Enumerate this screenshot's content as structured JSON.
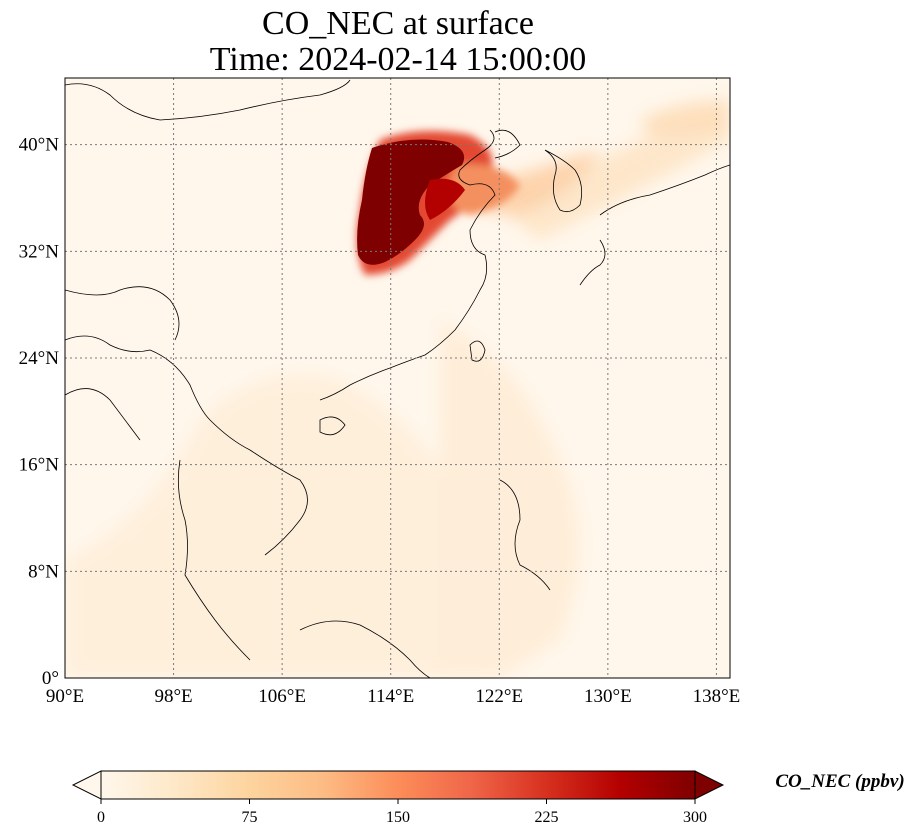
{
  "title": {
    "line1": "CO_NEC at surface",
    "line2": "Time: 2024-02-14 15:00:00"
  },
  "map": {
    "projection": "PlateCarree",
    "lon_range": [
      90,
      139
    ],
    "lat_range": [
      0,
      45
    ],
    "gridlines": "dotted",
    "x_ticks": [
      {
        "value": 90,
        "label": "90°E"
      },
      {
        "value": 98,
        "label": "98°E"
      },
      {
        "value": 106,
        "label": "106°E"
      },
      {
        "value": 114,
        "label": "114°E"
      },
      {
        "value": 122,
        "label": "122°E"
      },
      {
        "value": 130,
        "label": "130°E"
      },
      {
        "value": 138,
        "label": "138°E"
      }
    ],
    "y_ticks": [
      {
        "value": 0,
        "label": "0°"
      },
      {
        "value": 8,
        "label": "8°N"
      },
      {
        "value": 16,
        "label": "16°N"
      },
      {
        "value": 24,
        "label": "24°N"
      },
      {
        "value": 32,
        "label": "32°N"
      },
      {
        "value": 40,
        "label": "40°N"
      }
    ]
  },
  "colorbar": {
    "label": "CO_NEC (ppbv)",
    "colormap": "OrRd",
    "min": 0,
    "max": 300,
    "extend": "both",
    "colors": [
      "#fff7ec",
      "#fee8c8",
      "#fdd49e",
      "#fdbb84",
      "#fc8d59",
      "#ef6548",
      "#d7301f",
      "#b30000",
      "#7f0000"
    ],
    "ticks": [
      {
        "value": 0,
        "label": "0"
      },
      {
        "value": 75,
        "label": "75"
      },
      {
        "value": 150,
        "label": "150"
      },
      {
        "value": 225,
        "label": "225"
      },
      {
        "value": 300,
        "label": "300"
      }
    ]
  }
}
